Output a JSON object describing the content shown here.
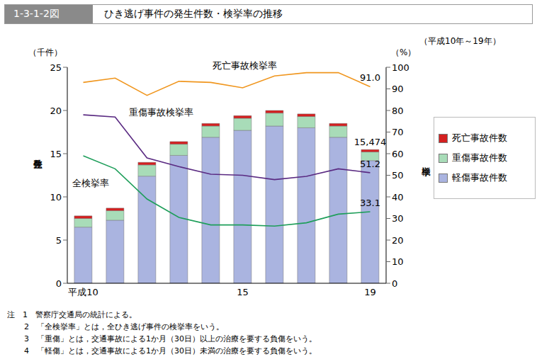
{
  "chart_data": {
    "type": "bar",
    "figure_number": "1-3-1-2図",
    "title": "ひき逃げ事件の発生件数・検挙率の推移",
    "subtitle": "（平成10年～19年）",
    "ylabel": "発生件数",
    "ylabel_unit": "（千件）",
    "y2label": "検挙率",
    "y2label_unit": "（%）",
    "categories": [
      "平成10",
      null,
      null,
      null,
      null,
      "15",
      null,
      null,
      null,
      "19"
    ],
    "stacked": true,
    "grid": false,
    "legend": "right",
    "ylim": [
      0,
      25
    ],
    "yticks": [
      0,
      5,
      10,
      15,
      20,
      25
    ],
    "y2lim": [
      0,
      100
    ],
    "y2ticks": [
      0,
      10,
      20,
      30,
      40,
      50,
      60,
      70,
      80,
      90,
      100
    ],
    "series": [
      {
        "name": "死亡事故件数",
        "type": "bar",
        "color": "#d42020",
        "values": [
          0.3,
          0.3,
          0.3,
          0.3,
          0.3,
          0.3,
          0.3,
          0.3,
          0.3,
          0.274
        ]
      },
      {
        "name": "重傷事故件数",
        "type": "bar",
        "color": "#a8dcb8",
        "values": [
          1.0,
          1.1,
          1.3,
          1.3,
          1.3,
          1.4,
          1.5,
          1.3,
          1.3,
          1.0
        ]
      },
      {
        "name": "軽傷事故件数",
        "type": "bar",
        "color": "#aab4e0",
        "values": [
          6.5,
          7.3,
          12.4,
          14.8,
          16.9,
          17.7,
          18.2,
          18.0,
          16.9,
          14.2
        ]
      },
      {
        "name": "死亡事故検挙率",
        "type": "line",
        "axis": "y2",
        "color": "#f0961e",
        "marker": "none",
        "line_style": "solid",
        "values": [
          93,
          95,
          87,
          93.5,
          93,
          90.5,
          96,
          97.5,
          97.5,
          91.0
        ],
        "value_labels": [
          null,
          null,
          null,
          null,
          null,
          null,
          null,
          null,
          null,
          "91.0"
        ]
      },
      {
        "name": "重傷事故検挙率",
        "type": "line",
        "axis": "y2",
        "color": "#5a2a82",
        "marker": "none",
        "line_style": "solid",
        "values": [
          78,
          77,
          58,
          54,
          50.5,
          50,
          48,
          49.5,
          53,
          51.2
        ],
        "value_labels": [
          null,
          null,
          null,
          null,
          null,
          null,
          null,
          null,
          null,
          "51.2"
        ]
      },
      {
        "name": "全検挙率",
        "type": "line",
        "axis": "y2",
        "color": "#1e9e5a",
        "marker": "none",
        "line_style": "solid",
        "values": [
          59,
          53,
          39,
          30.5,
          27,
          27,
          26.5,
          28,
          32,
          33.1
        ],
        "value_labels": [
          null,
          null,
          null,
          null,
          null,
          null,
          null,
          null,
          null,
          "33.1"
        ]
      }
    ],
    "annotations": [
      {
        "text": "15,474",
        "category_index": 9,
        "value": 15.474
      }
    ],
    "notes": [
      "注　1　警察庁交通局の統計による。",
      "2　「全検挙率」とは，全ひき逃げ事件の検挙率をいう。",
      "3　「重傷」とは，交通事故による1か月（30日）以上の治療を要する負傷をいう。",
      "4　「軽傷」とは，交通事故による1か月（30日）未満の治療を要する負傷をいう。"
    ]
  }
}
